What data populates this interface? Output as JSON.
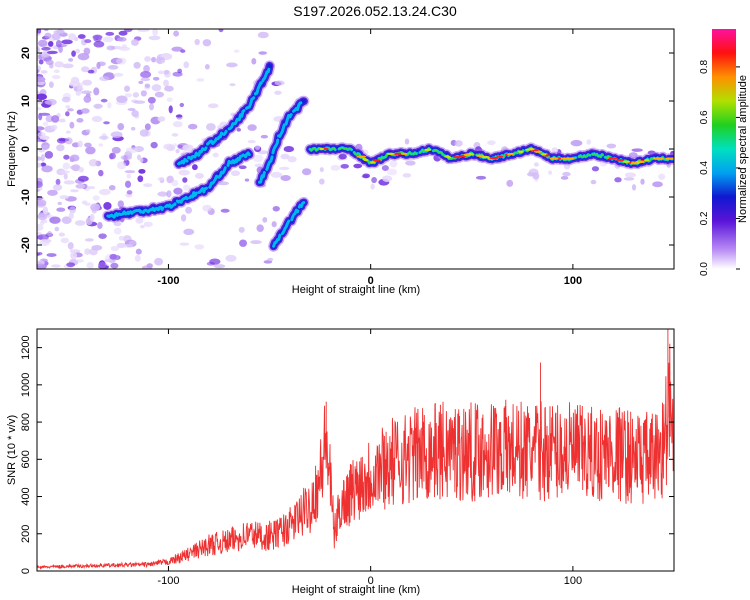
{
  "title": "S197.2026.052.13.24.C30",
  "chart_data": [
    {
      "type": "heatmap",
      "name": "spectrogram",
      "xlabel": "Height of straight line (km)",
      "ylabel": "Frequency (Hz)",
      "xlim": [
        -165,
        150
      ],
      "ylim": [
        -25,
        25
      ],
      "xticks": [
        -100,
        0,
        100
      ],
      "yticks": [
        -20,
        -10,
        0,
        10,
        20
      ],
      "colorbar": {
        "label": "Normalized spectral amplitude",
        "ticks": [
          "0.0",
          "0.2",
          "0.4",
          "0.6",
          "0.8"
        ],
        "range": [
          0,
          0.95
        ]
      },
      "ridges": [
        {
          "name": "main-trace",
          "points": [
            [
              -30,
              0
            ],
            [
              -20,
              0
            ],
            [
              -10,
              0
            ],
            [
              0,
              -3
            ],
            [
              10,
              -1
            ],
            [
              20,
              -1
            ],
            [
              30,
              0
            ],
            [
              40,
              -2
            ],
            [
              50,
              -1
            ],
            [
              60,
              -2
            ],
            [
              70,
              -1
            ],
            [
              80,
              0
            ],
            [
              90,
              -2
            ],
            [
              100,
              -2
            ],
            [
              110,
              -1
            ],
            [
              120,
              -2
            ],
            [
              130,
              -3
            ],
            [
              140,
              -2
            ],
            [
              150,
              -2
            ]
          ]
        },
        {
          "name": "upper-branch",
          "points": [
            [
              -95,
              -3
            ],
            [
              -85,
              -1
            ],
            [
              -80,
              1
            ],
            [
              -70,
              4
            ],
            [
              -60,
              9
            ],
            [
              -50,
              17
            ]
          ]
        },
        {
          "name": "lower-branch",
          "points": [
            [
              -130,
              -14
            ],
            [
              -115,
              -13
            ],
            [
              -100,
              -12
            ],
            [
              -90,
              -10
            ],
            [
              -80,
              -8
            ],
            [
              -70,
              -3
            ],
            [
              -60,
              -1
            ]
          ]
        },
        {
          "name": "middle-branch",
          "points": [
            [
              -55,
              -7
            ],
            [
              -50,
              -3
            ],
            [
              -45,
              3
            ],
            [
              -40,
              7
            ],
            [
              -33,
              10
            ]
          ]
        },
        {
          "name": "short-branch",
          "points": [
            [
              -48,
              -20
            ],
            [
              -40,
              -15
            ],
            [
              -33,
              -11
            ]
          ]
        }
      ]
    },
    {
      "type": "line",
      "name": "snr",
      "xlabel": "Height of straight line (km)",
      "ylabel": "SNR (10 * v/v)",
      "xlim": [
        -165,
        150
      ],
      "ylim": [
        0,
        1300
      ],
      "xticks": [
        -100,
        0,
        100
      ],
      "yticks": [
        0,
        200,
        400,
        600,
        800,
        1000,
        1200
      ],
      "color": "#ee3030",
      "series": [
        {
          "name": "SNR",
          "x": [
            -165,
            -150,
            -130,
            -110,
            -100,
            -90,
            -80,
            -70,
            -60,
            -50,
            -40,
            -30,
            -25,
            -22,
            -20,
            -18,
            -15,
            -10,
            -5,
            0,
            5,
            10,
            15,
            20,
            30,
            40,
            50,
            60,
            70,
            80,
            90,
            100,
            110,
            120,
            130,
            140,
            145,
            148,
            150
          ],
          "y": [
            20,
            25,
            30,
            35,
            50,
            90,
            140,
            160,
            200,
            180,
            240,
            350,
            500,
            700,
            480,
            200,
            350,
            420,
            480,
            520,
            560,
            580,
            600,
            620,
            640,
            650,
            640,
            660,
            650,
            640,
            650,
            640,
            620,
            640,
            610,
            600,
            680,
            900,
            600
          ],
          "spikes": [
            [
              -50,
              270
            ],
            [
              -22,
              910
            ],
            [
              84,
              1120
            ],
            [
              147,
              1300
            ],
            [
              -78,
              190
            ]
          ]
        }
      ]
    }
  ]
}
